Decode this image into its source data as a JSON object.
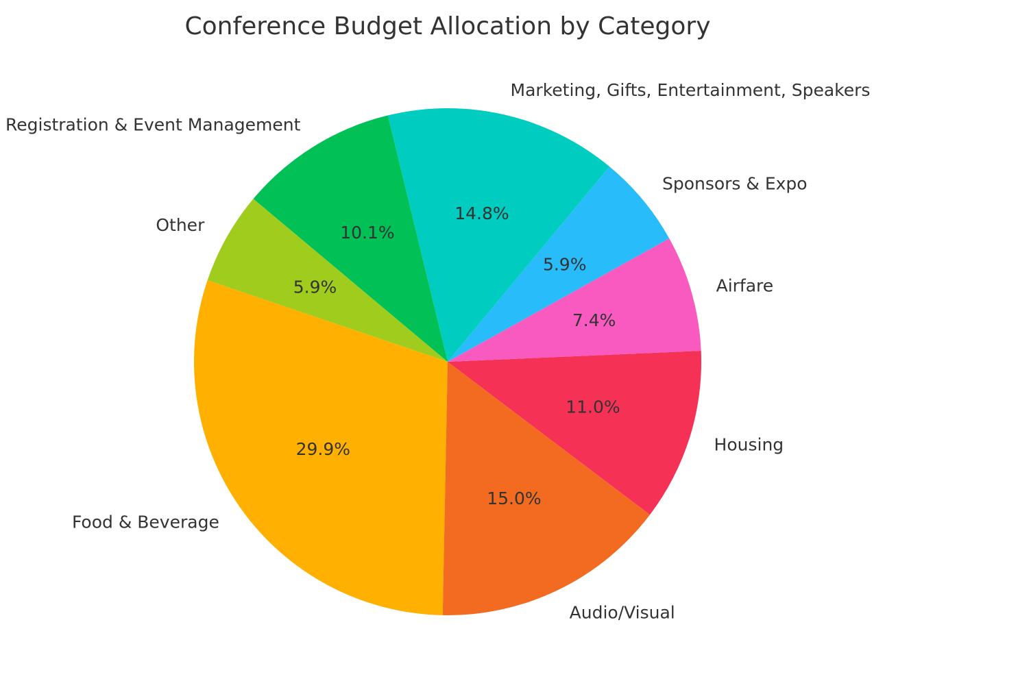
{
  "chart_data": {
    "type": "pie",
    "title": "Conference Budget Allocation by Category",
    "start_angle_deg": 140,
    "direction": "counterclockwise",
    "slices": [
      {
        "label": "Other",
        "value": 5.9,
        "pct_label": "5.9%",
        "color": "#a0cc1e"
      },
      {
        "label": "Food & Beverage",
        "value": 29.9,
        "pct_label": "29.9%",
        "color": "#ffb000"
      },
      {
        "label": "Audio/Visual",
        "value": 15.0,
        "pct_label": "15.0%",
        "color": "#f26b21"
      },
      {
        "label": "Housing",
        "value": 11.0,
        "pct_label": "11.0%",
        "color": "#f53256"
      },
      {
        "label": "Airfare",
        "value": 7.4,
        "pct_label": "7.4%",
        "color": "#f85ac0"
      },
      {
        "label": "Sponsors & Expo",
        "value": 5.9,
        "pct_label": "5.9%",
        "color": "#29bcfb"
      },
      {
        "label": "Marketing, Gifts, Entertainment, Speakers",
        "value": 14.8,
        "pct_label": "14.8%",
        "color": "#00ccc0"
      },
      {
        "label": "Registration & Event Management",
        "value": 10.1,
        "pct_label": "10.1%",
        "color": "#00c056"
      }
    ]
  }
}
